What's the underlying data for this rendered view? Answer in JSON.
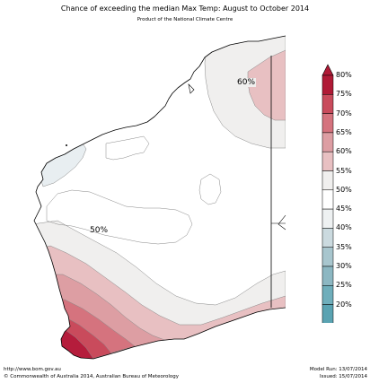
{
  "header": {
    "title": "Chance of exceeding the median Max Temp: August to October 2014",
    "subtitle": "Product of the National Climate Centre"
  },
  "map": {
    "region": "Western Australia",
    "labels": [
      "60%",
      "50%"
    ],
    "zone_colors": {
      "80": "#b51d3c",
      "75": "#c94b5c",
      "70": "#d5737e",
      "65": "#dd9ea3",
      "60": "#e8c0c2",
      "55": "#f0efee",
      "45": "#e8eef1",
      "land": "#ffffff",
      "coast": "#000000"
    }
  },
  "legend": {
    "labels": [
      "80%",
      "75%",
      "70%",
      "65%",
      "60%",
      "55%",
      "50%",
      "45%",
      "40%",
      "35%",
      "30%",
      "25%",
      "20%"
    ],
    "colors": [
      "#b01a36",
      "#c94b5c",
      "#d5737e",
      "#dd9ea3",
      "#e8c0c2",
      "#f0efee",
      "#ffffff",
      "#eef1f2",
      "#cbdadf",
      "#a8c6ce",
      "#8cb7c2",
      "#6faebb",
      "#5aa3b2"
    ]
  },
  "footer": {
    "url": "http://www.bom.gov.au",
    "copyright": "©  Commonwealth of Australia 2014, Australian Bureau of Meteorology",
    "model_run": "Model Run: 13/07/2014",
    "issued": "Issued: 15/07/2014"
  }
}
